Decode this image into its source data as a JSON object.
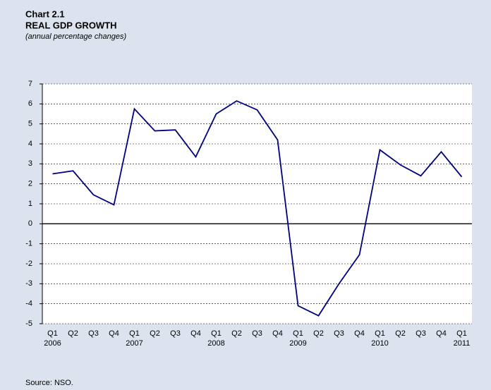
{
  "chart_data": {
    "type": "line",
    "chart_number": "Chart 2.1",
    "title": "REAL GDP GROWTH",
    "subtitle": "(annual percentage changes)",
    "source": "Source: NSO.",
    "categories": [
      "Q1",
      "Q2",
      "Q3",
      "Q4",
      "Q1",
      "Q2",
      "Q3",
      "Q4",
      "Q1",
      "Q2",
      "Q3",
      "Q4",
      "Q1",
      "Q2",
      "Q3",
      "Q4",
      "Q1",
      "Q2",
      "Q3",
      "Q4",
      "Q1"
    ],
    "years": [
      "2006",
      null,
      null,
      null,
      "2007",
      null,
      null,
      null,
      "2008",
      null,
      null,
      null,
      "2009",
      null,
      null,
      null,
      "2010",
      null,
      null,
      null,
      "2011"
    ],
    "series": [
      {
        "name": "Real GDP growth",
        "color": "#000080",
        "values": [
          2.5,
          2.65,
          1.45,
          0.95,
          5.75,
          4.65,
          4.7,
          3.35,
          5.5,
          6.15,
          5.7,
          4.2,
          -4.1,
          -4.6,
          -3.0,
          -1.55,
          3.7,
          2.95,
          2.4,
          3.6,
          2.35
        ]
      }
    ],
    "ylim": [
      -5,
      7
    ],
    "yticks": [
      -5,
      -4,
      -3,
      -2,
      -1,
      0,
      1,
      2,
      3,
      4,
      5,
      6,
      7
    ],
    "grid": true
  }
}
